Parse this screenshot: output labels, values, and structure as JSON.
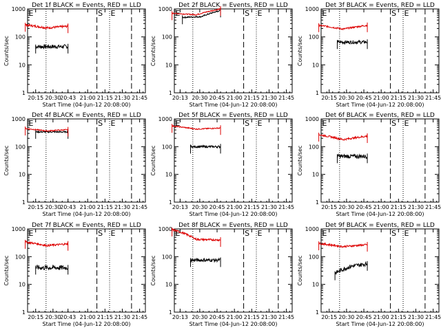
{
  "chart_data": [
    {
      "type": "line",
      "title": "Det 1f BLACK = Events, RED = LLD",
      "xlabel": "Start Time (04-Jun-12 20:08:00)",
      "ylabel": "Counts/sec",
      "yscale": "log",
      "ylim": [
        1,
        1000
      ],
      "yticks": [
        "1",
        "10",
        "100",
        "1000"
      ],
      "xlim": [
        "20:08",
        "21:50"
      ],
      "xticks": [
        "20:15",
        "20:30",
        "20:43",
        "21:00",
        "21:15",
        "21:30",
        "21:45"
      ],
      "markers": [
        "E",
        "S",
        "E"
      ],
      "series": [
        {
          "name": "BLACK",
          "color": "#000000",
          "x_range": [
            "20:15",
            "20:43"
          ],
          "level": 45,
          "jitter": 0.15
        },
        {
          "name": "RED",
          "color": "#dd0000",
          "x_range": [
            "20:06",
            "20:43"
          ],
          "level": 240,
          "jitter": 0.08,
          "trend": [
            270,
            210,
            240
          ]
        }
      ]
    },
    {
      "type": "line",
      "title": "Det 2f BLACK = Events, RED = LLD",
      "xlabel": "Start Time (04-Jun-12 20:08:00)",
      "ylabel": "Counts/sec",
      "yscale": "log",
      "ylim": [
        1,
        1000
      ],
      "yticks": [
        "1",
        "10",
        "100",
        "1000"
      ],
      "xlim": [
        "20:08",
        "21:50"
      ],
      "xticks": [
        "20:13",
        "20:30",
        "20:45",
        "21:00",
        "21:15",
        "21:30",
        "21:45"
      ],
      "markers": [
        "E",
        "S",
        "E"
      ],
      "series": [
        {
          "name": "BLACK",
          "color": "#000000",
          "x_range": [
            "20:15",
            "20:48"
          ],
          "level": 550,
          "jitter": 0.05,
          "trend": [
            500,
            530,
            880
          ]
        },
        {
          "name": "RED",
          "color": "#dd0000",
          "x_range": [
            "20:06",
            "20:48"
          ],
          "level": 650,
          "jitter": 0.04,
          "trend": [
            700,
            620,
            1000
          ]
        }
      ]
    },
    {
      "type": "line",
      "title": "Det 3f BLACK = Events, RED = LLD",
      "xlabel": "Start Time (04-Jun-12 20:08:00)",
      "ylabel": "Counts/sec",
      "yscale": "log",
      "ylim": [
        1,
        1000
      ],
      "yticks": [
        "1",
        "10",
        "100",
        "1000"
      ],
      "xlim": [
        "20:08",
        "21:50"
      ],
      "xticks": [
        "20:15",
        "20:30",
        "20:45",
        "21:00",
        "21:15",
        "21:30",
        "21:45"
      ],
      "markers": [
        "E",
        "S",
        "E"
      ],
      "series": [
        {
          "name": "BLACK",
          "color": "#000000",
          "x_range": [
            "20:22",
            "20:48"
          ],
          "level": 65,
          "jitter": 0.12
        },
        {
          "name": "RED",
          "color": "#dd0000",
          "x_range": [
            "20:06",
            "20:48"
          ],
          "level": 220,
          "jitter": 0.06,
          "trend": [
            260,
            190,
            260
          ]
        }
      ]
    },
    {
      "type": "line",
      "title": "Det 4f BLACK = Events, RED = LLD",
      "xlabel": "Start Time (04-Jun-12 20:08:00)",
      "ylabel": "Counts/sec",
      "yscale": "log",
      "ylim": [
        1,
        1000
      ],
      "yticks": [
        "1",
        "10",
        "100",
        "1000"
      ],
      "xlim": [
        "20:08",
        "21:50"
      ],
      "xticks": [
        "20:15",
        "20:30",
        "20:43",
        "21:00",
        "21:15",
        "21:30",
        "21:45"
      ],
      "markers": [
        "E",
        "S",
        "E"
      ],
      "series": [
        {
          "name": "BLACK",
          "color": "#000000",
          "x_range": [
            "20:15",
            "20:43"
          ],
          "level": 340,
          "jitter": 0.05
        },
        {
          "name": "RED",
          "color": "#dd0000",
          "x_range": [
            "20:06",
            "20:43"
          ],
          "level": 400,
          "jitter": 0.04,
          "trend": [
            450,
            370,
            410
          ]
        }
      ]
    },
    {
      "type": "line",
      "title": "Det 5f BLACK = Events, RED = LLD",
      "xlabel": "Start Time (04-Jun-12 20:08:00)",
      "ylabel": "Counts/sec",
      "yscale": "log",
      "ylim": [
        1,
        1000
      ],
      "yticks": [
        "1",
        "10",
        "100",
        "1000"
      ],
      "xlim": [
        "20:08",
        "21:50"
      ],
      "xticks": [
        "20:13",
        "20:30",
        "20:45",
        "21:00",
        "21:15",
        "21:30",
        "21:45"
      ],
      "markers": [
        "E",
        "S",
        "E"
      ],
      "series": [
        {
          "name": "BLACK",
          "color": "#000000",
          "x_range": [
            "20:22",
            "20:48"
          ],
          "level": 100,
          "jitter": 0.08
        },
        {
          "name": "RED",
          "color": "#dd0000",
          "x_range": [
            "20:06",
            "20:48"
          ],
          "level": 480,
          "jitter": 0.04,
          "trend": [
            560,
            430,
            470
          ]
        }
      ]
    },
    {
      "type": "line",
      "title": "Det 6f BLACK = Events, RED = LLD",
      "xlabel": "Start Time (04-Jun-12 20:08:00)",
      "ylabel": "Counts/sec",
      "yscale": "log",
      "ylim": [
        1,
        1000
      ],
      "yticks": [
        "1",
        "10",
        "100",
        "1000"
      ],
      "xlim": [
        "20:08",
        "21:50"
      ],
      "xticks": [
        "20:15",
        "20:30",
        "20:45",
        "21:00",
        "21:15",
        "21:30",
        "21:45"
      ],
      "markers": [
        "E",
        "S",
        "E"
      ],
      "series": [
        {
          "name": "BLACK",
          "color": "#000000",
          "x_range": [
            "20:22",
            "20:48"
          ],
          "level": 45,
          "jitter": 0.15
        },
        {
          "name": "RED",
          "color": "#dd0000",
          "x_range": [
            "20:06",
            "20:48"
          ],
          "level": 220,
          "jitter": 0.07,
          "trend": [
            270,
            180,
            240
          ]
        }
      ]
    },
    {
      "type": "line",
      "title": "Det 7f BLACK = Events, RED = LLD",
      "xlabel": "Start Time (04-Jun-12 20:08:00)",
      "ylabel": "Counts/sec",
      "yscale": "log",
      "ylim": [
        1,
        1000
      ],
      "yticks": [
        "1",
        "10",
        "100",
        "1000"
      ],
      "xlim": [
        "20:08",
        "21:50"
      ],
      "xticks": [
        "20:15",
        "20:30",
        "20:43",
        "21:00",
        "21:15",
        "21:30",
        "21:45"
      ],
      "markers": [
        "E",
        "S",
        "E"
      ],
      "series": [
        {
          "name": "BLACK",
          "color": "#000000",
          "x_range": [
            "20:15",
            "20:43"
          ],
          "level": 40,
          "jitter": 0.18
        },
        {
          "name": "RED",
          "color": "#dd0000",
          "x_range": [
            "20:06",
            "20:43"
          ],
          "level": 280,
          "jitter": 0.07,
          "trend": [
            340,
            250,
            290
          ]
        }
      ]
    },
    {
      "type": "line",
      "title": "Det 8f BLACK = Events, RED = LLD",
      "xlabel": "Start Time (04-Jun-12 20:08:00)",
      "ylabel": "Counts/sec",
      "yscale": "log",
      "ylim": [
        1,
        1000
      ],
      "yticks": [
        "1",
        "10",
        "100",
        "1000"
      ],
      "xlim": [
        "20:08",
        "21:50"
      ],
      "xticks": [
        "20:13",
        "20:30",
        "20:45",
        "21:00",
        "21:15",
        "21:30",
        "21:45"
      ],
      "markers": [
        "E",
        "S",
        "E"
      ],
      "series": [
        {
          "name": "BLACK",
          "color": "#000000",
          "x_range": [
            "20:22",
            "20:48"
          ],
          "level": 75,
          "jitter": 0.12
        },
        {
          "name": "RED",
          "color": "#dd0000",
          "x_range": [
            "20:06",
            "20:48"
          ],
          "level": 500,
          "jitter": 0.07,
          "trend": [
            950,
            420,
            400
          ]
        }
      ]
    },
    {
      "type": "line",
      "title": "Det 9f BLACK = Events, RED = LLD",
      "xlabel": "Start Time (04-Jun-12 20:08:00)",
      "ylabel": "Counts/sec",
      "yscale": "log",
      "ylim": [
        1,
        1000
      ],
      "yticks": [
        "1",
        "10",
        "100",
        "1000"
      ],
      "xlim": [
        "20:08",
        "21:50"
      ],
      "xticks": [
        "20:15",
        "20:30",
        "20:45",
        "21:00",
        "21:15",
        "21:30",
        "21:45"
      ],
      "markers": [
        "E",
        "S",
        "E"
      ],
      "series": [
        {
          "name": "BLACK",
          "color": "#000000",
          "x_range": [
            "20:20",
            "20:48"
          ],
          "level": 45,
          "jitter": 0.15,
          "trend": [
            25,
            45,
            55
          ]
        },
        {
          "name": "RED",
          "color": "#dd0000",
          "x_range": [
            "20:06",
            "20:48"
          ],
          "level": 260,
          "jitter": 0.07,
          "trend": [
            300,
            230,
            270
          ]
        }
      ]
    }
  ],
  "overlay_lines": {
    "dotted_at": [
      "20:24"
    ],
    "dashed_at": [
      "21:08",
      "21:38"
    ],
    "dotted_late_at": [
      "21:19"
    ]
  }
}
